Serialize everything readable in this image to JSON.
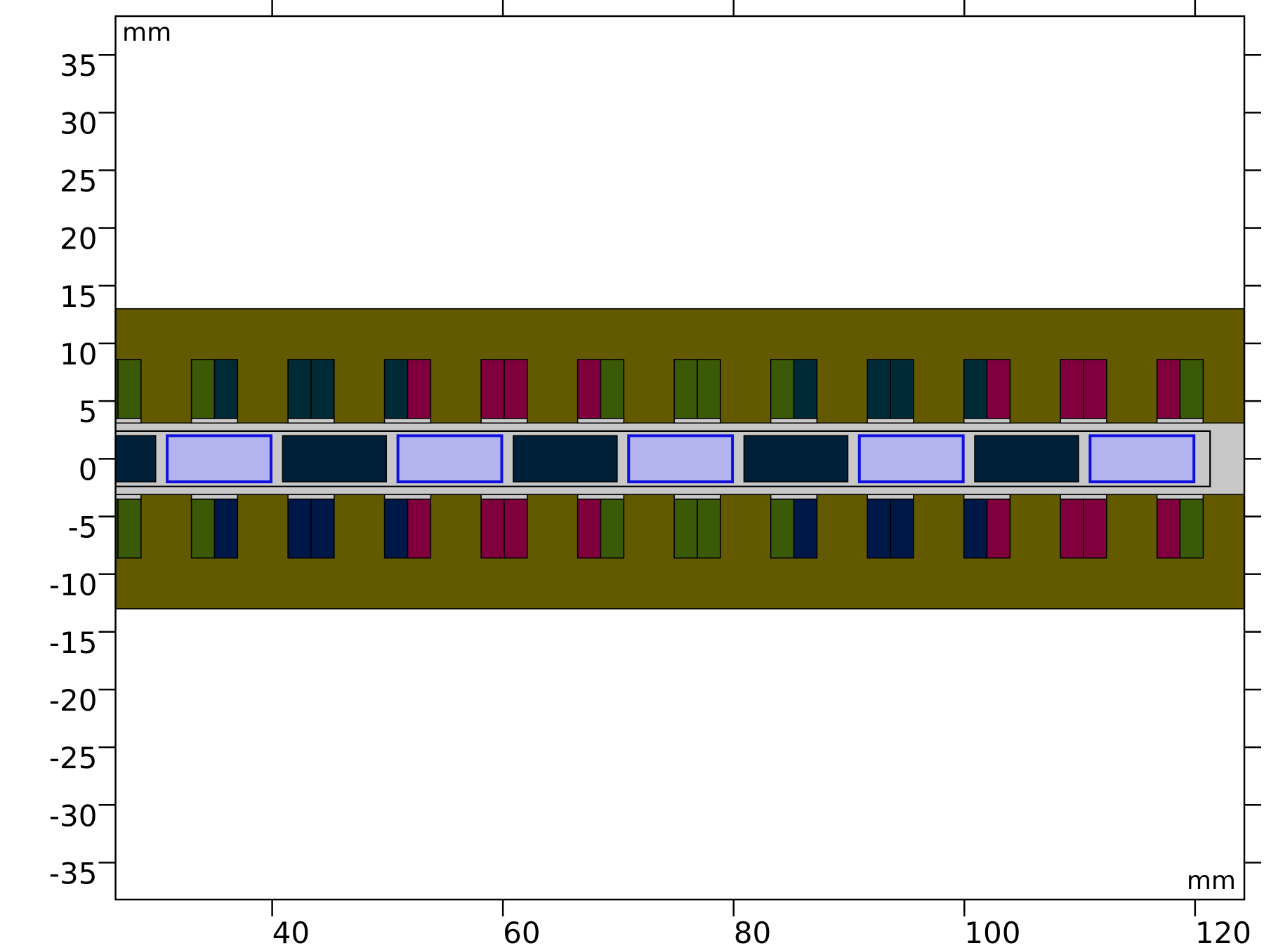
{
  "chart_data": {
    "type": "geometry",
    "x_unit": "mm",
    "y_unit": "mm",
    "xlim": [
      26.42,
      124.27
    ],
    "xticks": [
      40,
      60,
      80,
      100,
      120
    ],
    "ylim": [
      -38.2,
      38.36
    ],
    "yticks": [
      -35,
      -30,
      -25,
      -20,
      -15,
      -10,
      -5,
      0,
      5,
      10,
      15,
      20,
      25,
      30,
      35
    ]
  }
}
